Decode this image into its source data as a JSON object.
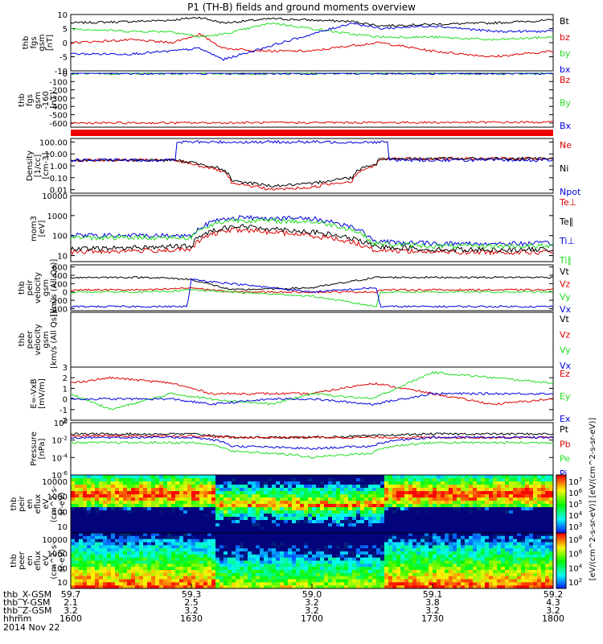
{
  "title": "P1 (TH-B) fields and ground moments overview",
  "footer": {
    "row_labels": [
      "thb_X-GSM",
      "thb_Y-GSM",
      "thb_Z-GSM",
      "hhmm",
      "2014 Nov 22"
    ],
    "columns": [
      {
        "x": "59.7",
        "y": "2.1",
        "z": "3.2",
        "t": "1600"
      },
      {
        "x": "59.3",
        "y": "2.5",
        "z": "3.2",
        "t": "1630"
      },
      {
        "x": "59.0",
        "y": "3.2",
        "z": "3.2",
        "t": "1700"
      },
      {
        "x": "59.1",
        "y": "3.8",
        "z": "3.2",
        "t": "1730"
      },
      {
        "x": "59.2",
        "y": "4.3",
        "z": "3.2",
        "t": "1800"
      }
    ]
  },
  "colors": {
    "black": "#000000",
    "red": "#dd0000",
    "green": "#22dd22",
    "blue": "#0000dd"
  },
  "chart_data": [
    {
      "type": "line",
      "ylabel": [
        "thb",
        "fgs",
        "gsm",
        "[nT]"
      ],
      "yticks": [
        "10",
        "5",
        "0",
        "-5",
        "-10"
      ],
      "ylim": [
        -10,
        10
      ],
      "legend": [
        {
          "name": "Bt",
          "color": "black"
        },
        {
          "name": "bz",
          "color": "red"
        },
        {
          "name": "by",
          "color": "green"
        },
        {
          "name": "bx",
          "color": "blue"
        }
      ],
      "series": [
        {
          "name": "Bt",
          "color": "black",
          "x": [
            1600,
            1615,
            1625,
            1632,
            1638,
            1650,
            1700,
            1710,
            1717,
            1730,
            1745,
            1800
          ],
          "y": [
            7,
            7.5,
            8,
            9,
            7,
            8.5,
            8,
            7.5,
            6,
            6.5,
            7,
            8
          ]
        },
        {
          "name": "bz",
          "color": "red",
          "x": [
            1600,
            1615,
            1625,
            1632,
            1638,
            1650,
            1700,
            1710,
            1717,
            1730,
            1745,
            1800
          ],
          "y": [
            0,
            1,
            0,
            3,
            -2,
            -3,
            -3,
            -1,
            0,
            -3,
            -5,
            -3
          ]
        },
        {
          "name": "by",
          "color": "green",
          "x": [
            1600,
            1615,
            1625,
            1632,
            1638,
            1650,
            1700,
            1710,
            1717,
            1730,
            1745,
            1800
          ],
          "y": [
            5,
            4,
            4,
            2,
            3,
            7,
            5,
            3,
            2,
            2,
            1,
            2
          ]
        },
        {
          "name": "bx",
          "color": "blue",
          "x": [
            1600,
            1615,
            1625,
            1632,
            1638,
            1650,
            1700,
            1710,
            1717,
            1730,
            1745,
            1800
          ],
          "y": [
            -4,
            -4,
            -3,
            -2,
            -6,
            -1,
            3,
            7,
            5,
            6,
            4,
            4
          ]
        }
      ]
    },
    {
      "type": "line",
      "ylabel": [
        "thb",
        "fgs",
        "gsm",
        "-160",
        "[nT]"
      ],
      "yticks": [
        "0",
        "-100",
        "-200",
        "-300",
        "-400",
        "-500",
        "-600"
      ],
      "ylim": [
        -650,
        0
      ],
      "legend": [
        {
          "name": "Bz",
          "color": "red"
        },
        {
          "name": "By",
          "color": "green"
        },
        {
          "name": "Bx",
          "color": "blue"
        }
      ],
      "series": [
        {
          "name": "Bz",
          "color": "red",
          "x": [
            1600,
            1800
          ],
          "y": [
            -600,
            -590
          ]
        },
        {
          "name": "By",
          "color": "green",
          "x": [
            1600,
            1800
          ],
          "y": [
            -2,
            -2
          ]
        },
        {
          "name": "Bx",
          "color": "blue",
          "x": [
            1600,
            1800
          ],
          "y": [
            -3,
            -3
          ]
        }
      ]
    },
    {
      "type": "line",
      "scale": "log",
      "ylabel": [
        "Density",
        "[1/cc]",
        "[cm-3]"
      ],
      "yticks": [
        "100.00",
        "10.00",
        "1.00",
        "0.10",
        "0.01"
      ],
      "ylim": [
        0.005,
        200
      ],
      "legend": [
        {
          "name": "Ne",
          "color": "red"
        },
        {
          "name": "Ni",
          "color": "black"
        },
        {
          "name": "Npot",
          "color": "blue"
        }
      ],
      "series": [
        {
          "name": "Ne",
          "color": "red",
          "x": [
            1600,
            1625,
            1632,
            1640,
            1650,
            1700,
            1710,
            1716,
            1717,
            1730,
            1800
          ],
          "y": [
            3,
            3,
            1,
            0.03,
            0.01,
            0.015,
            0.05,
            1,
            4,
            4,
            4
          ]
        },
        {
          "name": "Ni",
          "color": "black",
          "x": [
            1600,
            1625,
            1632,
            1640,
            1650,
            1700,
            1710,
            1716,
            1717,
            1730,
            1800
          ],
          "y": [
            3,
            3,
            1.5,
            0.05,
            0.02,
            0.03,
            0.1,
            1.5,
            4,
            4,
            4
          ]
        },
        {
          "name": "Npot",
          "color": "blue",
          "x": [
            1600,
            1626,
            1626,
            1719,
            1719,
            1800
          ],
          "y": [
            3,
            3,
            100,
            100,
            3,
            3
          ]
        }
      ]
    },
    {
      "type": "line",
      "scale": "log",
      "ylabel": [
        "mom3",
        "[eV]"
      ],
      "yticks": [
        "10000",
        "1000",
        "100",
        "10"
      ],
      "ylim": [
        5,
        10000
      ],
      "legend": [
        {
          "name": "Te⊥",
          "color": "red"
        },
        {
          "name": "Te∥",
          "color": "black"
        },
        {
          "name": "Ti⊥",
          "color": "blue"
        },
        {
          "name": "Ti∥",
          "color": "green"
        }
      ],
      "series": [
        {
          "name": "Te⊥",
          "color": "red",
          "x": [
            1600,
            1630,
            1640,
            1700,
            1715,
            1730,
            1800
          ],
          "y": [
            15,
            20,
            200,
            100,
            20,
            15,
            15
          ]
        },
        {
          "name": "Te∥",
          "color": "black",
          "x": [
            1600,
            1630,
            1640,
            1700,
            1715,
            1730,
            1800
          ],
          "y": [
            20,
            30,
            300,
            150,
            30,
            20,
            20
          ]
        },
        {
          "name": "Ti⊥",
          "color": "blue",
          "x": [
            1600,
            1630,
            1640,
            1700,
            1715,
            1730,
            1800
          ],
          "y": [
            100,
            100,
            800,
            700,
            50,
            40,
            40
          ]
        },
        {
          "name": "Ti∥",
          "color": "green",
          "x": [
            1600,
            1630,
            1640,
            1700,
            1715,
            1730,
            1800
          ],
          "y": [
            80,
            80,
            600,
            500,
            40,
            30,
            30
          ]
        }
      ]
    },
    {
      "type": "line",
      "ylabel": [
        "thb",
        "peir",
        "velocity",
        "gsm",
        "[km/s (All Qs)]"
      ],
      "yticks": [
        "600",
        "400",
        "200",
        "0",
        "-200",
        "-400"
      ],
      "ylim": [
        -450,
        650
      ],
      "legend": [
        {
          "name": "Vt",
          "color": "black"
        },
        {
          "name": "Vz",
          "color": "red"
        },
        {
          "name": "Vy",
          "color": "green"
        },
        {
          "name": "Vx",
          "color": "blue"
        }
      ],
      "series": [
        {
          "name": "Vt",
          "color": "black",
          "x": [
            1600,
            1620,
            1630,
            1640,
            1700,
            1716,
            1717,
            1730,
            1800
          ],
          "y": [
            350,
            350,
            300,
            50,
            100,
            350,
            350,
            350,
            350
          ]
        },
        {
          "name": "Vz",
          "color": "red",
          "x": [
            1600,
            1620,
            1630,
            1640,
            1700,
            1716,
            1717,
            1730,
            1800
          ],
          "y": [
            50,
            50,
            100,
            0,
            0,
            0,
            50,
            50,
            50
          ]
        },
        {
          "name": "Vy",
          "color": "green",
          "x": [
            1600,
            1620,
            1630,
            1640,
            1700,
            1716,
            1717,
            1730,
            1800
          ],
          "y": [
            0,
            0,
            50,
            0,
            -100,
            -350,
            0,
            0,
            0
          ]
        },
        {
          "name": "Vx",
          "color": "blue",
          "x": [
            1600,
            1620,
            1629,
            1630,
            1700,
            1716,
            1717,
            1730,
            1800
          ],
          "y": [
            -350,
            -350,
            -350,
            300,
            0,
            100,
            -350,
            -350,
            -350
          ]
        }
      ]
    },
    {
      "type": "line",
      "ylabel": [
        "thb",
        "peer",
        "velocity",
        "gsm",
        "[km/s (All Qs)]"
      ],
      "yticks": [],
      "legend": [
        {
          "name": "Vt",
          "color": "black"
        },
        {
          "name": "Vz",
          "color": "red"
        },
        {
          "name": "Vy",
          "color": "green"
        },
        {
          "name": "Vx",
          "color": "blue"
        }
      ],
      "series": []
    },
    {
      "type": "line",
      "ylabel": [
        "E=-VxB",
        "[mV/m]"
      ],
      "yticks": [
        "3",
        "2",
        "1",
        "0",
        "-1",
        "-2"
      ],
      "ylim": [
        -2,
        3
      ],
      "legend": [
        {
          "name": "Ez",
          "color": "red"
        },
        {
          "name": "Ey",
          "color": "green"
        },
        {
          "name": "Ex",
          "color": "blue"
        }
      ],
      "series": [
        {
          "name": "Ez",
          "color": "red",
          "x": [
            1600,
            1610,
            1625,
            1635,
            1650,
            1700,
            1715,
            1730,
            1745,
            1800
          ],
          "y": [
            1.5,
            2.0,
            1.5,
            0.5,
            0.5,
            0.5,
            1.5,
            0.5,
            -0.5,
            0.0
          ]
        },
        {
          "name": "Ey",
          "color": "green",
          "x": [
            1600,
            1610,
            1625,
            1635,
            1650,
            1700,
            1715,
            1730,
            1745,
            1800
          ],
          "y": [
            0.5,
            -1.0,
            0.5,
            0.0,
            -0.5,
            0.5,
            0.0,
            2.5,
            2.0,
            1.5
          ]
        },
        {
          "name": "Ex",
          "color": "blue",
          "x": [
            1600,
            1610,
            1625,
            1635,
            1650,
            1700,
            1715,
            1730,
            1745,
            1800
          ],
          "y": [
            0.0,
            0.0,
            0.0,
            -0.5,
            0.0,
            0.0,
            -0.5,
            0.5,
            0.5,
            0.5
          ]
        }
      ]
    },
    {
      "type": "line",
      "scale": "log",
      "ylabel": [
        "Pressure",
        "[nPa]"
      ],
      "yticks": [
        "10^0",
        "10^-2",
        "10^-4",
        "10^-6"
      ],
      "ylim": [
        1e-06,
        1
      ],
      "legend": [
        {
          "name": "Pt",
          "color": "black"
        },
        {
          "name": "Pb",
          "color": "red"
        },
        {
          "name": "Pe",
          "color": "green"
        },
        {
          "name": "Pi",
          "color": "blue"
        }
      ],
      "series": [
        {
          "name": "Pt",
          "color": "black",
          "x": [
            1600,
            1630,
            1640,
            1700,
            1715,
            1730,
            1800
          ],
          "y": [
            0.05,
            0.05,
            0.02,
            0.02,
            0.03,
            0.05,
            0.05
          ]
        },
        {
          "name": "Pb",
          "color": "red",
          "x": [
            1600,
            1630,
            1640,
            1700,
            1715,
            1730,
            1800
          ],
          "y": [
            0.03,
            0.03,
            0.02,
            0.02,
            0.02,
            0.02,
            0.02
          ]
        },
        {
          "name": "Pe",
          "color": "green",
          "x": [
            1600,
            1630,
            1640,
            1700,
            1715,
            1730,
            1800
          ],
          "y": [
            0.005,
            0.005,
            0.0005,
            0.0001,
            0.0003,
            0.005,
            0.005
          ]
        },
        {
          "name": "Pi",
          "color": "blue",
          "x": [
            1600,
            1630,
            1640,
            1700,
            1715,
            1730,
            1800
          ],
          "y": [
            0.02,
            0.02,
            0.002,
            0.001,
            0.002,
            0.02,
            0.02
          ]
        }
      ]
    },
    {
      "type": "heatmap",
      "ylabel": [
        "thb",
        "peir",
        "en",
        "eflux",
        "eV",
        "(cm^2-s-",
        "sr-eV)"
      ],
      "yticks": [
        "10000",
        "1000",
        "100",
        "10"
      ],
      "colorbar_ticks": [
        "10^7",
        "10^6",
        "10^5",
        "10^4",
        "10^3"
      ],
      "colorbar_label": "[eV/(cm^2-s-sr-eV)] [eV/(cm^2-s-sr-eV)]"
    },
    {
      "type": "heatmap",
      "ylabel": [
        "thb",
        "peer",
        "en",
        "eflux",
        "eV",
        "(cm^2-s-",
        "sr-eV)"
      ],
      "yticks": [
        "10000",
        "1000",
        "100",
        "10"
      ],
      "colorbar_ticks": [
        "10^8",
        "10^6",
        "10^4",
        "10^2"
      ]
    }
  ]
}
